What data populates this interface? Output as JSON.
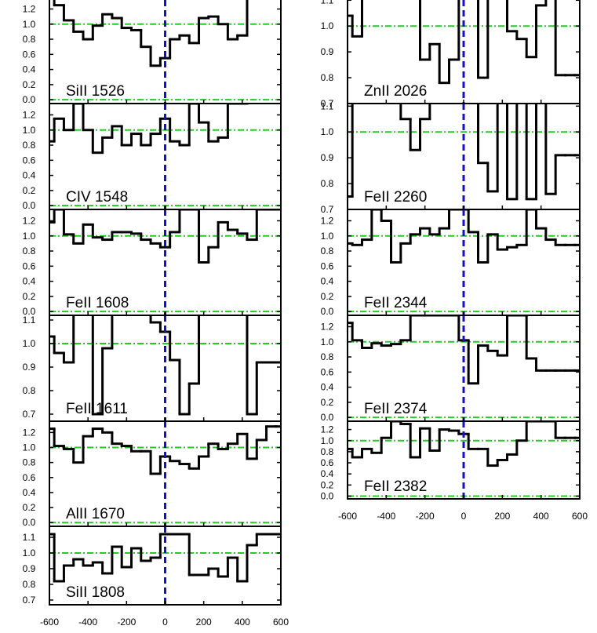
{
  "colors": {
    "spectrum": "#000000",
    "continuum": "#22cc22",
    "zero_velocity": "#1111cc",
    "frame": "#000000",
    "background": "#ffffff"
  },
  "chart_data": [
    {
      "type": "line",
      "step": true,
      "label": "SiII 1526",
      "ylim": [
        -0.05,
        1.35
      ],
      "yticks": [
        0.0,
        0.2,
        0.4,
        0.6,
        0.8,
        1.0,
        1.2
      ],
      "ytick_labels": [
        "0.0",
        "0.2",
        "0.4",
        "0.6",
        "0.8",
        "1.0",
        "1.2"
      ],
      "xlim": [
        -600,
        600
      ],
      "continuum": [
        1.0,
        0.0
      ],
      "x": [
        -600,
        -550,
        -500,
        -450,
        -400,
        -350,
        -300,
        -250,
        -200,
        -150,
        -100,
        -50,
        0,
        50,
        100,
        150,
        200,
        250,
        300,
        350,
        400,
        450,
        500,
        550,
        600
      ],
      "y": [
        1.4,
        1.25,
        1.05,
        0.9,
        0.8,
        0.98,
        1.13,
        1.08,
        0.95,
        0.92,
        0.7,
        0.45,
        0.55,
        0.8,
        0.85,
        0.75,
        1.08,
        1.1,
        1.0,
        0.8,
        0.85,
        1.35,
        1.35,
        1.4,
        1.4
      ]
    },
    {
      "type": "line",
      "step": true,
      "label": "CIV 1548",
      "ylim": [
        -0.05,
        1.35
      ],
      "yticks": [
        0.0,
        0.2,
        0.4,
        0.6,
        0.8,
        1.0,
        1.2
      ],
      "ytick_labels": [
        "0.0",
        "0.2",
        "0.4",
        "0.6",
        "0.8",
        "1.0",
        "1.2"
      ],
      "xlim": [
        -600,
        600
      ],
      "continuum": [
        1.0,
        0.0
      ],
      "x": [
        -600,
        -550,
        -500,
        -450,
        -400,
        -350,
        -300,
        -250,
        -200,
        -150,
        -100,
        -50,
        0,
        50,
        100,
        150,
        200,
        250,
        300,
        350,
        400
      ],
      "y": [
        0.85,
        1.15,
        1.0,
        1.35,
        1.0,
        0.7,
        0.9,
        1.05,
        0.8,
        0.95,
        0.8,
        0.95,
        1.15,
        0.85,
        0.8,
        1.35,
        1.1,
        0.85,
        0.9,
        1.35,
        1.35
      ]
    },
    {
      "type": "line",
      "step": true,
      "label": "FeII 1608",
      "ylim": [
        -0.05,
        1.35
      ],
      "yticks": [
        0.0,
        0.2,
        0.4,
        0.6,
        0.8,
        1.0,
        1.2
      ],
      "ytick_labels": [
        "0.0",
        "0.2",
        "0.4",
        "0.6",
        "0.8",
        "1.0",
        "1.2"
      ],
      "xlim": [
        -600,
        600
      ],
      "continuum": [
        1.0,
        0.0
      ],
      "x": [
        -600,
        -550,
        -500,
        -450,
        -400,
        -350,
        -300,
        -250,
        -200,
        -150,
        -100,
        -50,
        0,
        50,
        100,
        150,
        200,
        250,
        300,
        350,
        400,
        450,
        500,
        550,
        600
      ],
      "y": [
        1.18,
        1.35,
        1.02,
        0.9,
        1.15,
        0.98,
        0.95,
        1.05,
        1.05,
        1.03,
        0.95,
        0.9,
        0.85,
        1.05,
        1.35,
        1.35,
        0.65,
        0.85,
        1.18,
        1.08,
        1.03,
        0.95,
        1.35,
        1.35,
        1.35
      ]
    },
    {
      "type": "line",
      "step": true,
      "label": "FeII 1611",
      "ylim": [
        0.67,
        1.12
      ],
      "yticks": [
        0.7,
        0.8,
        0.9,
        1.0,
        1.1
      ],
      "ytick_labels": [
        "0.7",
        "0.8",
        "0.9",
        "1.0",
        "1.1"
      ],
      "xlim": [
        -600,
        600
      ],
      "continuum": [
        1.0
      ],
      "x": [
        -600,
        -550,
        -500,
        -450,
        -400,
        -350,
        -300,
        -250,
        -200,
        -150,
        -100,
        -50,
        0,
        50,
        100,
        150,
        200,
        250,
        300,
        350,
        400,
        450,
        500,
        550,
        600
      ],
      "y": [
        1.03,
        0.96,
        0.92,
        1.15,
        1.15,
        0.7,
        0.98,
        1.15,
        1.15,
        1.15,
        1.15,
        1.09,
        1.05,
        0.93,
        0.7,
        0.83,
        1.15,
        1.15,
        1.15,
        1.15,
        1.15,
        0.7,
        0.92,
        0.92,
        0.92
      ]
    },
    {
      "type": "line",
      "step": true,
      "label": "AlII 1670",
      "ylim": [
        -0.05,
        1.35
      ],
      "yticks": [
        0.0,
        0.2,
        0.4,
        0.6,
        0.8,
        1.0,
        1.2
      ],
      "ytick_labels": [
        "0.0",
        "0.2",
        "0.4",
        "0.6",
        "0.8",
        "1.0",
        "1.2"
      ],
      "xlim": [
        -600,
        600
      ],
      "continuum": [
        1.0,
        0.0
      ],
      "x": [
        -600,
        -550,
        -500,
        -450,
        -400,
        -350,
        -300,
        -250,
        -200,
        -150,
        -100,
        -50,
        0,
        50,
        100,
        150,
        200,
        250,
        300,
        350,
        400,
        450,
        500,
        550,
        600
      ],
      "y": [
        1.25,
        1.02,
        0.98,
        0.8,
        1.15,
        1.25,
        1.2,
        1.05,
        1.02,
        0.95,
        0.95,
        0.65,
        0.88,
        0.82,
        0.78,
        0.72,
        0.88,
        1.05,
        0.98,
        1.05,
        1.18,
        0.85,
        1.1,
        1.28,
        1.28
      ]
    },
    {
      "type": "line",
      "step": true,
      "label": "SiII 1808",
      "ylim": [
        0.67,
        1.17
      ],
      "yticks": [
        0.7,
        0.8,
        0.9,
        1.0,
        1.1
      ],
      "ytick_labels": [
        "0.7",
        "0.8",
        "0.9",
        "1.0",
        "1.1"
      ],
      "xlim": [
        -600,
        600
      ],
      "continuum": [
        1.0
      ],
      "x": [
        -600,
        -550,
        -500,
        -450,
        -400,
        -350,
        -300,
        -250,
        -200,
        -150,
        -100,
        -50,
        0,
        50,
        100,
        150,
        200,
        250,
        300,
        350,
        400,
        450,
        500,
        550,
        600
      ],
      "y": [
        1.12,
        0.82,
        0.92,
        0.96,
        0.92,
        0.94,
        0.87,
        1.04,
        0.91,
        1.03,
        0.95,
        0.97,
        1.12,
        1.12,
        1.12,
        0.86,
        0.86,
        0.9,
        0.85,
        0.97,
        0.82,
        1.05,
        1.12,
        1.12,
        1.12
      ]
    },
    {
      "type": "line",
      "step": true,
      "label": "ZnII 2026",
      "ylim": [
        0.7,
        1.11
      ],
      "yticks": [
        0.7,
        0.8,
        0.9,
        1.0,
        1.1
      ],
      "ytick_labels": [
        "0.7",
        "0.8",
        "0.9",
        "1.0",
        "1.1"
      ],
      "xlim": [
        -600,
        600
      ],
      "continuum": [
        1.0
      ],
      "x": [
        -600,
        -550,
        -500,
        -450,
        -400,
        -350,
        -300,
        -250,
        -200,
        -150,
        -100,
        -50,
        0,
        50,
        100,
        150,
        200,
        250,
        300,
        350,
        400,
        450,
        500,
        550,
        600
      ],
      "y": [
        1.04,
        0.96,
        1.12,
        1.12,
        1.12,
        1.12,
        1.12,
        1.12,
        0.87,
        0.93,
        0.78,
        0.87,
        1.12,
        1.12,
        0.8,
        1.12,
        1.12,
        0.98,
        0.95,
        0.88,
        1.08,
        1.12,
        0.81,
        0.81,
        0.81
      ]
    },
    {
      "type": "line",
      "step": true,
      "label": "FeII 2260",
      "ylim": [
        0.7,
        1.11
      ],
      "yticks": [
        0.7,
        0.8,
        0.9,
        1.0,
        1.1
      ],
      "ytick_labels": [
        "0.7",
        "0.8",
        "0.9",
        "1.0",
        "1.1"
      ],
      "xlim": [
        -600,
        600
      ],
      "continuum": [
        1.0
      ],
      "x": [
        -600,
        -550,
        -500,
        -450,
        -400,
        -350,
        -300,
        -250,
        -200,
        -150,
        -100,
        -50,
        0,
        50,
        100,
        150,
        200,
        250,
        300,
        350,
        400,
        450,
        500,
        550,
        600
      ],
      "y": [
        0.75,
        1.12,
        1.12,
        1.12,
        1.12,
        1.12,
        1.05,
        0.93,
        1.05,
        1.12,
        1.12,
        1.12,
        1.12,
        1.12,
        0.88,
        0.77,
        1.12,
        0.74,
        1.12,
        0.74,
        1.12,
        0.76,
        0.91,
        0.91,
        0.91
      ]
    },
    {
      "type": "line",
      "step": true,
      "label": "FeII 2344",
      "ylim": [
        -0.05,
        1.35
      ],
      "yticks": [
        0.0,
        0.2,
        0.4,
        0.6,
        0.8,
        1.0,
        1.2
      ],
      "ytick_labels": [
        "0.0",
        "0.2",
        "0.4",
        "0.6",
        "0.8",
        "1.0",
        "1.2"
      ],
      "xlim": [
        -600,
        600
      ],
      "continuum": [
        1.0,
        0.0
      ],
      "x": [
        -600,
        -550,
        -500,
        -450,
        -400,
        -350,
        -300,
        -250,
        -200,
        -150,
        -100,
        -50,
        0,
        50,
        100,
        150,
        200,
        250,
        300,
        350,
        400,
        450,
        500,
        550,
        600
      ],
      "y": [
        0.9,
        0.88,
        0.95,
        1.35,
        1.2,
        0.65,
        0.9,
        1.02,
        1.1,
        1.02,
        1.1,
        1.35,
        1.35,
        1.05,
        0.65,
        1.02,
        0.82,
        0.85,
        0.88,
        1.35,
        1.1,
        0.95,
        0.88,
        0.88,
        0.88
      ]
    },
    {
      "type": "line",
      "step": true,
      "label": "FeII 2374",
      "ylim": [
        -0.05,
        1.35
      ],
      "yticks": [
        0.0,
        0.2,
        0.4,
        0.6,
        0.8,
        1.0,
        1.2
      ],
      "ytick_labels": [
        "0.0",
        "0.2",
        "0.4",
        "0.6",
        "0.8",
        "1.0",
        "1.2"
      ],
      "xlim": [
        -600,
        600
      ],
      "continuum": [
        1.0,
        0.0
      ],
      "x": [
        -600,
        -550,
        -500,
        -450,
        -400,
        -350,
        -300,
        -250,
        -200,
        -150,
        -100,
        -50,
        0,
        50,
        100,
        150,
        200,
        250,
        300,
        350,
        400,
        450,
        500,
        550,
        600
      ],
      "y": [
        1.25,
        1.02,
        0.92,
        0.98,
        0.95,
        0.97,
        1.02,
        1.35,
        1.35,
        1.35,
        1.35,
        1.35,
        1.02,
        0.45,
        0.95,
        0.88,
        0.82,
        1.35,
        1.35,
        0.78,
        0.62,
        0.62,
        0.62,
        0.62,
        0.62
      ]
    },
    {
      "type": "line",
      "step": true,
      "label": "FeII 2382",
      "ylim": [
        -0.05,
        1.35
      ],
      "yticks": [
        0.0,
        0.2,
        0.4,
        0.6,
        0.8,
        1.0,
        1.2
      ],
      "ytick_labels": [
        "0.0",
        "0.2",
        "0.4",
        "0.6",
        "0.8",
        "1.0",
        "1.2"
      ],
      "xlim": [
        -600,
        600
      ],
      "continuum": [
        1.0,
        0.0
      ],
      "x": [
        -600,
        -550,
        -500,
        -450,
        -400,
        -350,
        -300,
        -250,
        -200,
        -150,
        -100,
        -50,
        0,
        50,
        100,
        150,
        200,
        250,
        300,
        350,
        400,
        450,
        500,
        550,
        600
      ],
      "y": [
        0.85,
        0.7,
        0.85,
        0.78,
        1.05,
        1.35,
        1.3,
        0.7,
        1.22,
        0.82,
        1.2,
        1.18,
        1.12,
        0.85,
        0.85,
        0.55,
        0.65,
        0.75,
        1.0,
        1.35,
        1.35,
        1.35,
        1.05,
        1.05,
        1.05
      ]
    }
  ],
  "x_axis": {
    "ticks": [
      -600,
      -400,
      -200,
      0,
      200,
      400,
      600
    ],
    "tick_labels": [
      "-600",
      "-400",
      "-200",
      "0",
      "200",
      "400",
      "600"
    ]
  }
}
